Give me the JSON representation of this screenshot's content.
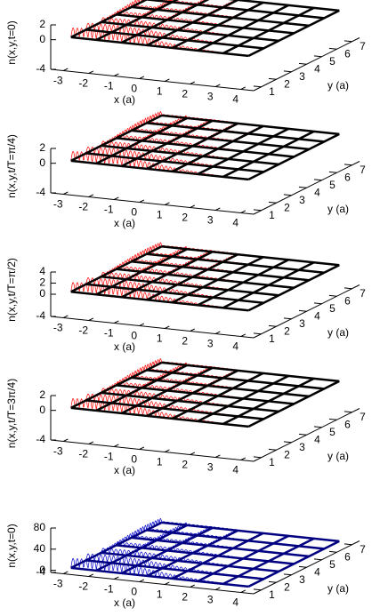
{
  "chart_data": [
    {
      "type": "surface3d",
      "zlabel": "n(x,y,t=0)",
      "xlabel": "x (a)",
      "ylabel": "y (a)",
      "color": "#ff0000",
      "xlim": [
        -3.5,
        4.5
      ],
      "ylim": [
        0.5,
        7.5
      ],
      "zlim": [
        -4,
        2
      ],
      "xticks": [
        -3,
        -2,
        -1,
        0,
        1,
        2,
        3,
        4
      ],
      "yticks": [
        1,
        2,
        3,
        4,
        5,
        6,
        7
      ],
      "zticks": [
        -4,
        0,
        2
      ]
    },
    {
      "type": "surface3d",
      "zlabel": "n(x,y,t/T=π/4)",
      "xlabel": "x (a)",
      "ylabel": "y (a)",
      "color": "#ff0000",
      "xlim": [
        -3.5,
        4.5
      ],
      "ylim": [
        0.5,
        7.5
      ],
      "zlim": [
        -4,
        2
      ],
      "xticks": [
        -3,
        -2,
        -1,
        0,
        1,
        2,
        3,
        4
      ],
      "yticks": [
        1,
        2,
        3,
        4,
        5,
        6,
        7
      ],
      "zticks": [
        -4,
        0,
        2
      ]
    },
    {
      "type": "surface3d",
      "zlabel": "n(x,y,t/T=π/2)",
      "xlabel": "x (a)",
      "ylabel": "y (a)",
      "color": "#ff0000",
      "xlim": [
        -3.5,
        4.5
      ],
      "ylim": [
        0.5,
        7.5
      ],
      "zlim": [
        -4,
        4
      ],
      "xticks": [
        -3,
        -2,
        -1,
        0,
        1,
        2,
        3,
        4
      ],
      "yticks": [
        1,
        2,
        3,
        4,
        5,
        6,
        7
      ],
      "zticks": [
        -4,
        0,
        2,
        4
      ]
    },
    {
      "type": "surface3d",
      "zlabel": "n(x,y,t/T=3π/4)",
      "xlabel": "x (a)",
      "ylabel": "y (a)",
      "color": "#ff0000",
      "xlim": [
        -3.5,
        4.5
      ],
      "ylim": [
        0.5,
        7.5
      ],
      "zlim": [
        -4,
        2
      ],
      "xticks": [
        -3,
        -2,
        -1,
        0,
        1,
        2,
        3,
        4
      ],
      "yticks": [
        1,
        2,
        3,
        4,
        5,
        6,
        7
      ],
      "zticks": [
        -4,
        0,
        2
      ]
    },
    {
      "type": "surface3d",
      "zlabel": "n(x,y,t=0)",
      "xlabel": "x (a)",
      "ylabel": "y (a)",
      "color": "#0000cc",
      "xlim": [
        -3.5,
        4.5
      ],
      "ylim": [
        0.5,
        7.5
      ],
      "zlim": [
        -4,
        80
      ],
      "xticks": [
        -3,
        -2,
        -1,
        0,
        1,
        2,
        3,
        4
      ],
      "yticks": [
        1,
        2,
        3,
        4,
        5,
        6,
        7
      ],
      "zticks": [
        -4,
        0,
        40,
        80
      ]
    }
  ]
}
